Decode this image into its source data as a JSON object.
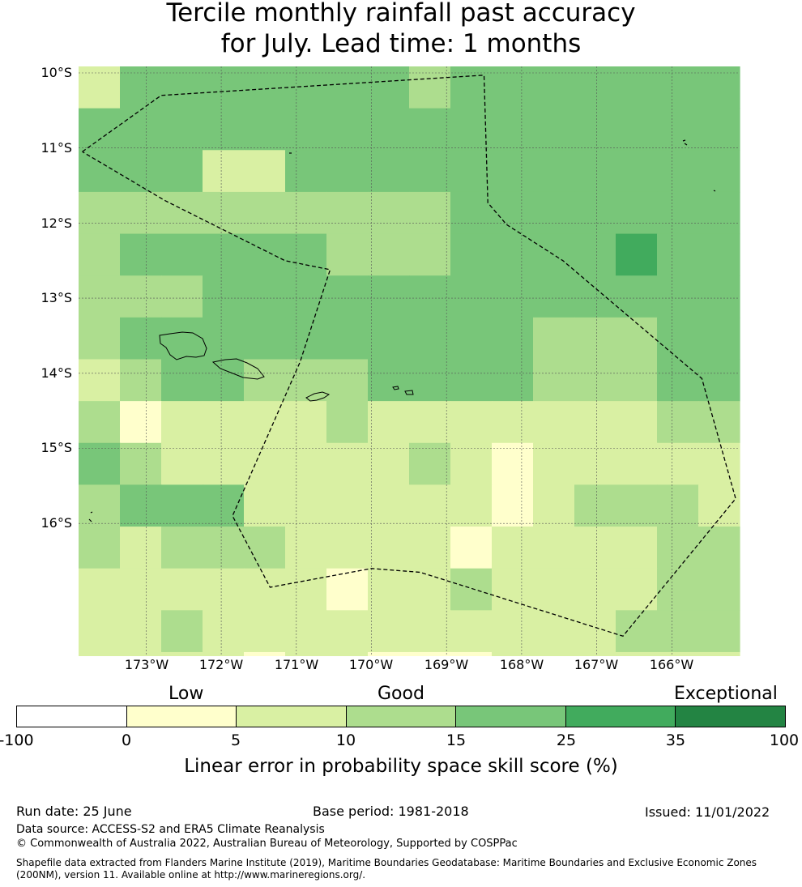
{
  "title": {
    "line1": "Tercile monthly rainfall past accuracy",
    "line2": "for July. Lead time: 1 months"
  },
  "map": {
    "lat_labels": [
      "10°S",
      "11°S",
      "12°S",
      "13°S",
      "14°S",
      "15°S",
      "16°S"
    ],
    "lon_labels": [
      "173°W",
      "172°W",
      "171°W",
      "170°W",
      "169°W",
      "168°W",
      "167°W",
      "166°W"
    ],
    "cell_size_deg": 0.5625,
    "grid_rows_north_to_south": [
      [
        2,
        4,
        4,
        4,
        4,
        4,
        4,
        4,
        3,
        4,
        4,
        4,
        4,
        4,
        4,
        4
      ],
      [
        4,
        4,
        4,
        4,
        4,
        4,
        4,
        4,
        4,
        4,
        4,
        4,
        4,
        4,
        4,
        4
      ],
      [
        4,
        4,
        4,
        2,
        2,
        4,
        4,
        4,
        4,
        4,
        4,
        4,
        4,
        4,
        4,
        4
      ],
      [
        3,
        3,
        3,
        3,
        3,
        3,
        3,
        3,
        3,
        4,
        4,
        4,
        4,
        4,
        4,
        4
      ],
      [
        3,
        4,
        4,
        4,
        4,
        4,
        3,
        3,
        3,
        4,
        4,
        4,
        4,
        5,
        4,
        4
      ],
      [
        3,
        3,
        3,
        4,
        4,
        4,
        4,
        4,
        4,
        4,
        4,
        4,
        4,
        4,
        4,
        4
      ],
      [
        3,
        4,
        4,
        4,
        4,
        4,
        4,
        4,
        4,
        4,
        4,
        3,
        3,
        3,
        4,
        4
      ],
      [
        2,
        3,
        4,
        4,
        3,
        3,
        3,
        4,
        4,
        4,
        4,
        3,
        3,
        3,
        4,
        4
      ],
      [
        3,
        1,
        2,
        2,
        2,
        2,
        3,
        2,
        2,
        2,
        2,
        2,
        2,
        2,
        3,
        3
      ],
      [
        4,
        3,
        2,
        2,
        2,
        2,
        2,
        2,
        3,
        2,
        1,
        2,
        2,
        2,
        2,
        2
      ],
      [
        3,
        4,
        4,
        4,
        2,
        2,
        2,
        2,
        2,
        2,
        1,
        2,
        3,
        3,
        3,
        2
      ],
      [
        3,
        2,
        3,
        3,
        3,
        2,
        2,
        2,
        2,
        1,
        2,
        2,
        2,
        2,
        3,
        3
      ],
      [
        2,
        2,
        2,
        2,
        2,
        2,
        1,
        2,
        2,
        3,
        2,
        2,
        2,
        2,
        3,
        3
      ],
      [
        2,
        2,
        3,
        2,
        2,
        2,
        2,
        2,
        2,
        2,
        2,
        2,
        2,
        3,
        3,
        3
      ],
      [
        2,
        2,
        2,
        2,
        1,
        2,
        2,
        1,
        1,
        1,
        2,
        2,
        2,
        2,
        2,
        2
      ]
    ],
    "eez_boundary_lonlat": [
      [
        -173.85,
        -11.05
      ],
      [
        -172.8,
        -10.3
      ],
      [
        -168.5,
        -10.03
      ],
      [
        -168.45,
        -11.73
      ],
      [
        -168.2,
        -12.02
      ],
      [
        -167.45,
        -12.5
      ],
      [
        -165.6,
        -14.07
      ],
      [
        -165.15,
        -15.67
      ],
      [
        -166.65,
        -17.5
      ],
      [
        -169.35,
        -16.65
      ],
      [
        -170.0,
        -16.6
      ],
      [
        -171.35,
        -16.85
      ],
      [
        -171.85,
        -15.9
      ],
      [
        -170.95,
        -13.85
      ],
      [
        -170.55,
        -12.62
      ],
      [
        -171.15,
        -12.5
      ],
      [
        -172.75,
        -11.7
      ],
      [
        -173.85,
        -11.05
      ]
    ],
    "coastline_color": "#000000",
    "boundary_color": "#000000"
  },
  "colorbar": {
    "category_words": [
      "Low",
      "Good",
      "Exceptional"
    ],
    "ticks": [
      "-100",
      "0",
      "5",
      "10",
      "15",
      "25",
      "35",
      "100"
    ],
    "colors": [
      "#ffffff",
      "#ffffcc",
      "#d9f0a3",
      "#addd8e",
      "#78c679",
      "#41ab5d",
      "#238443"
    ],
    "label": "Linear error in probability space skill score (%)"
  },
  "footer": {
    "run_date": "Run date: 25 June",
    "base_period": "Base period: 1981-2018",
    "issued": "Issued: 11/01/2022",
    "data_source": "Data source: ACCESS-S2 and ERA5 Climate Reanalysis",
    "copyright": "© Commonwealth of Australia 2022, Australian Bureau of Meteorology, Supported by COSPPac",
    "shapefile_line1": "Shapefile data extracted from Flanders Marine Institute (2019), Maritime Boundaries Geodatabase: Maritime Boundaries and Exclusive Economic Zones",
    "shapefile_line2": "(200NM), version 11. Available online at http://www.marineregions.org/."
  }
}
